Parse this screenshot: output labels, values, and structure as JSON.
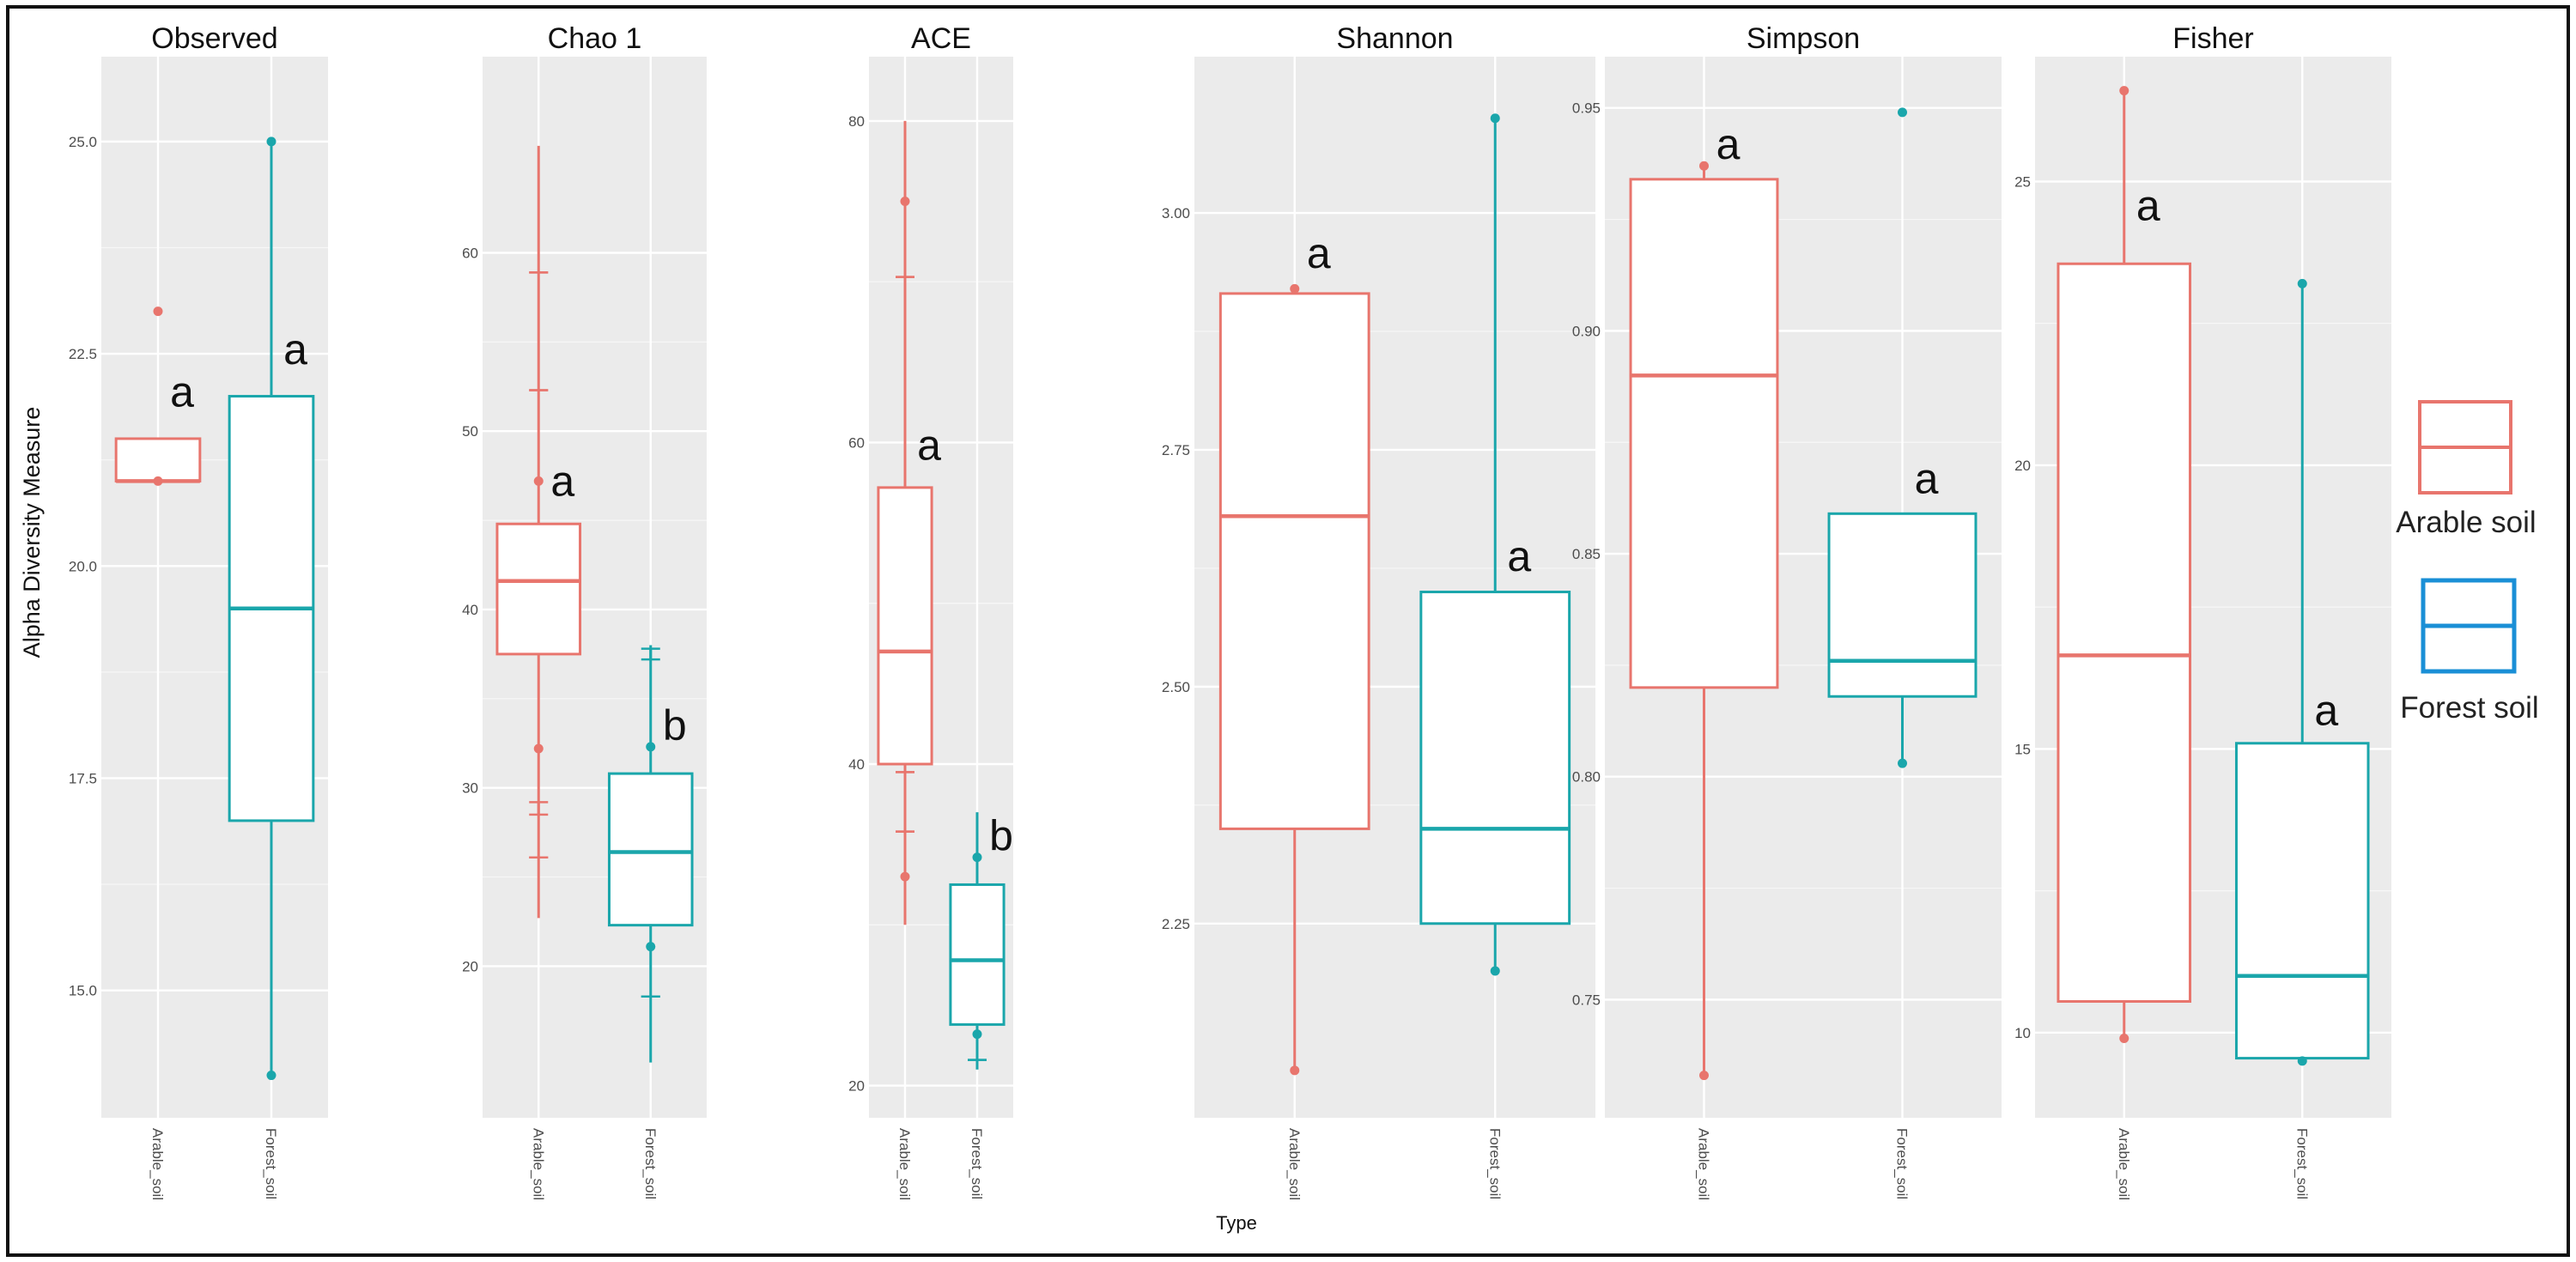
{
  "chart_data": {
    "type": "box",
    "ylabel": "Alpha Diversity Measure",
    "xlabel": "Type",
    "categories": [
      "Arable_soil",
      "Forest_soil"
    ],
    "colors": {
      "Arable_soil": "#e8756d",
      "Forest_soil": "#1aa6ab",
      "legend_forest": "#1a8fd6"
    },
    "legend": {
      "placement": "right",
      "items": [
        {
          "label": "Arable soil",
          "color": "#e8756d"
        },
        {
          "label": "Forest soil",
          "color": "#1a8fd6"
        }
      ]
    },
    "panels": [
      {
        "title": "Observed",
        "ylim": [
          13.5,
          26.0
        ],
        "yticks": [
          15.0,
          17.5,
          20.0,
          22.5,
          25.0
        ],
        "ytick_labels": [
          "15.0",
          "17.5",
          "20.0",
          "22.5",
          "25.0"
        ],
        "groups": [
          {
            "name": "Arable_soil",
            "lower_whisker": 21.0,
            "q1": 21.0,
            "median": 21.0,
            "q3": 21.5,
            "upper_whisker": 21.5,
            "points": [
              23.0,
              21.0
            ],
            "label": "a",
            "label_y": 21.8
          },
          {
            "name": "Forest_soil",
            "lower_whisker": 14.0,
            "q1": 17.0,
            "median": 19.5,
            "q3": 22.0,
            "upper_whisker": 25.0,
            "points": [
              25.0,
              14.0
            ],
            "label": "a",
            "label_y": 22.3
          }
        ]
      },
      {
        "title": "Chao 1",
        "ylim": [
          11.5,
          71.0
        ],
        "yticks": [
          20,
          30,
          40,
          50,
          60
        ],
        "ytick_labels": [
          "20",
          "30",
          "40",
          "50",
          "60"
        ],
        "groups": [
          {
            "name": "Arable_soil",
            "lower_whisker": 22.7,
            "q1": 37.5,
            "median": 41.6,
            "q3": 44.8,
            "upper_whisker": 66.0,
            "points": [
              47.2,
              32.2
            ],
            "errbars": [
              [
                58.9,
                58.9
              ],
              [
                52.3,
                52.3
              ],
              [
                29.2,
                28.5
              ],
              [
                26.1,
                26.1
              ]
            ],
            "label": "a",
            "label_y": 46.0
          },
          {
            "name": "Forest_soil",
            "lower_whisker": 14.6,
            "q1": 22.3,
            "median": 26.4,
            "q3": 30.8,
            "upper_whisker": 38.0,
            "points": [
              32.3,
              21.1
            ],
            "errbars": [
              [
                37.8,
                37.2
              ],
              [
                18.3,
                18.3
              ]
            ],
            "label": "b",
            "label_y": 32.3
          }
        ]
      },
      {
        "title": "ACE",
        "ylim": [
          18.0,
          84.0
        ],
        "yticks": [
          20,
          40,
          60,
          80
        ],
        "ytick_labels": [
          "20",
          "40",
          "60",
          "80"
        ],
        "groups": [
          {
            "name": "Arable_soil",
            "lower_whisker": 30.0,
            "q1": 40.0,
            "median": 47.0,
            "q3": 57.2,
            "upper_whisker": 80.0,
            "points": [
              75.0,
              33.0
            ],
            "errbars": [
              [
                70.3,
                70.3
              ],
              [
                39.5,
                39.5
              ],
              [
                35.8,
                35.8
              ]
            ],
            "label": "a",
            "label_y": 58.5
          },
          {
            "name": "Forest_soil",
            "lower_whisker": 21.0,
            "q1": 23.8,
            "median": 27.8,
            "q3": 32.5,
            "upper_whisker": 37.0,
            "points": [
              34.2,
              23.2
            ],
            "errbars": [
              [
                21.6,
                21.6
              ]
            ],
            "label": "b",
            "label_y": 34.2
          }
        ]
      },
      {
        "title": "Shannon",
        "ylim": [
          2.045,
          3.165
        ],
        "yticks": [
          2.25,
          2.5,
          2.75,
          3.0
        ],
        "ytick_labels": [
          "2.25",
          "2.50",
          "2.75",
          "3.00"
        ],
        "groups": [
          {
            "name": "Arable_soil",
            "lower_whisker": 2.095,
            "q1": 2.35,
            "median": 2.68,
            "q3": 2.915,
            "upper_whisker": 2.92,
            "points": [
              2.92,
              2.095
            ],
            "label": "a",
            "label_y": 2.935
          },
          {
            "name": "Forest_soil",
            "lower_whisker": 2.2,
            "q1": 2.25,
            "median": 2.35,
            "q3": 2.6,
            "upper_whisker": 3.1,
            "points": [
              3.1,
              2.2
            ],
            "label": "a",
            "label_y": 2.615
          }
        ]
      },
      {
        "title": "Simpson",
        "ylim": [
          0.7235,
          0.9615
        ],
        "yticks": [
          0.75,
          0.8,
          0.85,
          0.9,
          0.95
        ],
        "ytick_labels": [
          "0.75",
          "0.80",
          "0.85",
          "0.90",
          "0.95"
        ],
        "groups": [
          {
            "name": "Arable_soil",
            "lower_whisker": 0.733,
            "q1": 0.82,
            "median": 0.89,
            "q3": 0.934,
            "upper_whisker": 0.937,
            "points": [
              0.937,
              0.733
            ],
            "label": "a",
            "label_y": 0.937
          },
          {
            "name": "Forest_soil",
            "lower_whisker": 0.803,
            "q1": 0.818,
            "median": 0.826,
            "q3": 0.859,
            "upper_whisker": 0.859,
            "points": [
              0.949,
              0.803
            ],
            "label": "a",
            "label_y": 0.862
          }
        ]
      },
      {
        "title": "Fisher",
        "ylim": [
          8.5,
          27.2
        ],
        "yticks": [
          10,
          15,
          20,
          25
        ],
        "ytick_labels": [
          "10",
          "15",
          "20",
          "25"
        ],
        "groups": [
          {
            "name": "Arable_soil",
            "lower_whisker": 9.9,
            "q1": 10.55,
            "median": 16.65,
            "q3": 23.55,
            "upper_whisker": 26.6,
            "points": [
              26.6,
              9.9
            ],
            "label": "a",
            "label_y": 24.2
          },
          {
            "name": "Forest_soil",
            "lower_whisker": 9.5,
            "q1": 9.55,
            "median": 11.0,
            "q3": 15.1,
            "upper_whisker": 23.2,
            "points": [
              23.2,
              9.5
            ],
            "label": "a",
            "label_y": 15.3
          }
        ]
      }
    ]
  }
}
